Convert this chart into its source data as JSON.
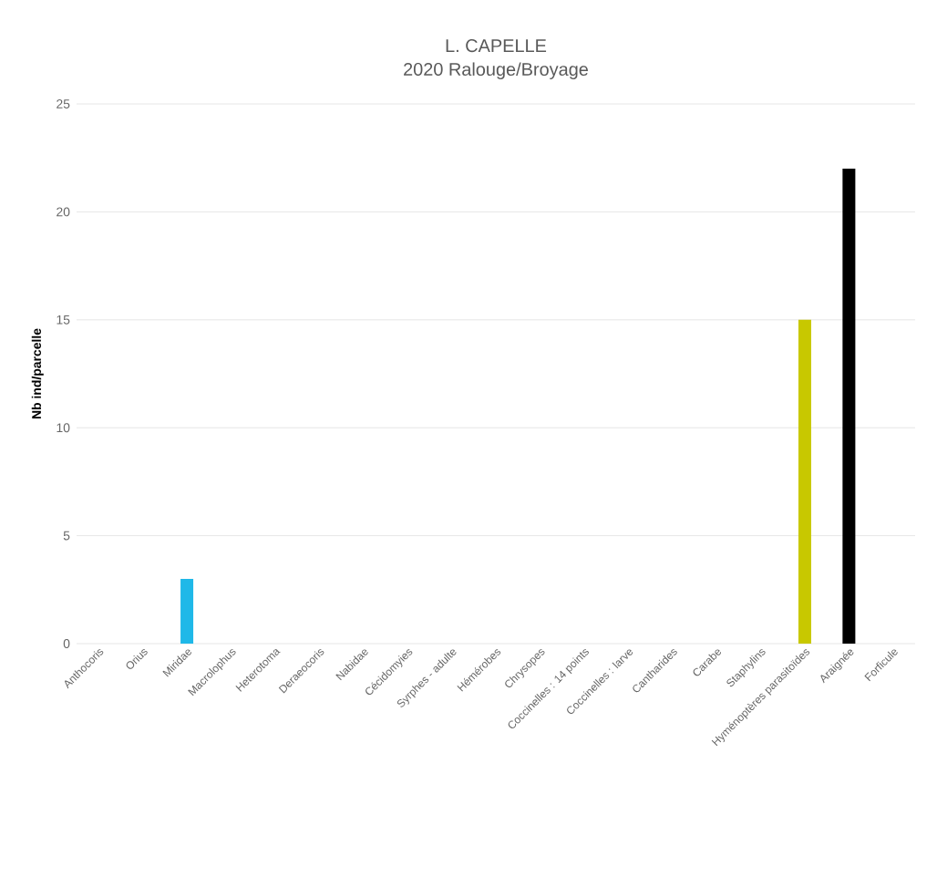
{
  "chart_data": {
    "type": "bar",
    "title": "L. CAPELLE",
    "subtitle": "2020 Ralouge/Broyage",
    "ylabel": "Nb ind/parcelle",
    "categories": [
      "Anthocoris",
      "Orius",
      "Miridae",
      "Macrolophus",
      "Heterotoma",
      "Deraeocoris",
      "Nabidae",
      "Cécidomyies",
      "Syrphes - adulte",
      "Hémérobes",
      "Chrysopes",
      "Coccinelles : 14 points",
      "Coccinelles : larve",
      "Cantharides",
      "Carabe",
      "Staphylins",
      "Hyménoptères parasitoïdes",
      "Araignée",
      "Forficule"
    ],
    "values": [
      0,
      0,
      3,
      0,
      0,
      0,
      0,
      0,
      0,
      0,
      0,
      0,
      0,
      0,
      0,
      0,
      15,
      22,
      0
    ],
    "colors": [
      "#1fb8e8",
      "#1fb8e8",
      "#1fb8e8",
      "#1fb8e8",
      "#1fb8e8",
      "#1fb8e8",
      "#1fb8e8",
      "#1fb8e8",
      "#1fb8e8",
      "#1fb8e8",
      "#1fb8e8",
      "#1fb8e8",
      "#1fb8e8",
      "#1fb8e8",
      "#1fb8e8",
      "#1fb8e8",
      "#c8c800",
      "#000000",
      "#1fb8e8"
    ],
    "ylim": [
      0,
      25
    ],
    "yticks": [
      0,
      5,
      10,
      15,
      20,
      25
    ],
    "grid": "y"
  }
}
